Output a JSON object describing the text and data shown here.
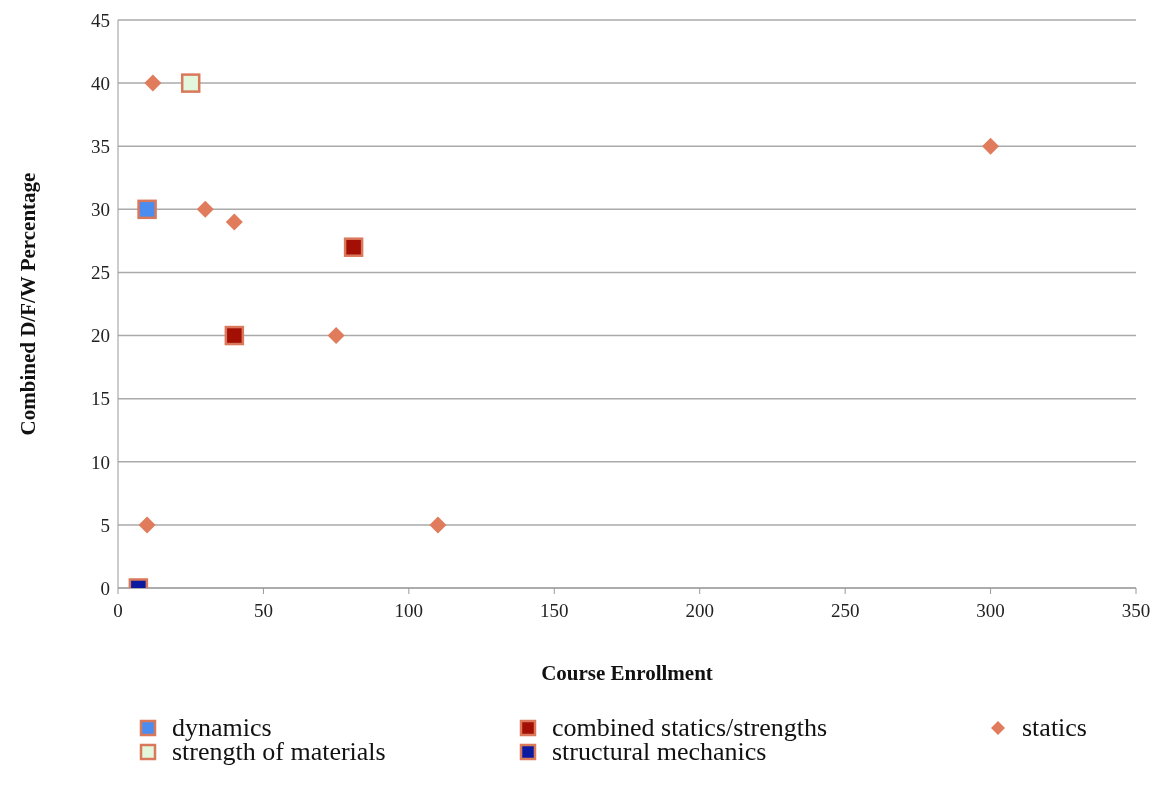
{
  "chart_data": {
    "type": "scatter",
    "xlabel": "Course Enrollment",
    "ylabel": "Combined D/F/W Percentage",
    "xlim": [
      0,
      350
    ],
    "xticks": [
      0,
      50,
      100,
      150,
      200,
      250,
      300,
      350
    ],
    "ylim": [
      0,
      45
    ],
    "yticks": [
      0,
      5,
      10,
      15,
      20,
      25,
      30,
      35,
      40,
      45
    ],
    "grid": "y",
    "legend": "bottom",
    "series": [
      {
        "name": "dynamics",
        "color": "#4a8cf0",
        "marker": "square",
        "x": [
          10
        ],
        "values": [
          30
        ]
      },
      {
        "name": "combined statics/strengths",
        "color": "#a30f05",
        "marker": "square",
        "x": [
          40,
          81
        ],
        "values": [
          20,
          27
        ]
      },
      {
        "name": "statics",
        "color": "#e07c5c",
        "marker": "diamond",
        "x": [
          12,
          30,
          40,
          75,
          10,
          110,
          300
        ],
        "values": [
          40,
          30,
          29,
          20,
          5,
          5,
          35
        ]
      },
      {
        "name": "strength of materials",
        "color": "#e2f7dc",
        "marker": "square",
        "x": [
          25
        ],
        "values": [
          40
        ]
      },
      {
        "name": "structural mechanics",
        "color": "#0c1aa0",
        "marker": "square",
        "x": [
          7
        ],
        "values": [
          0
        ]
      }
    ]
  }
}
